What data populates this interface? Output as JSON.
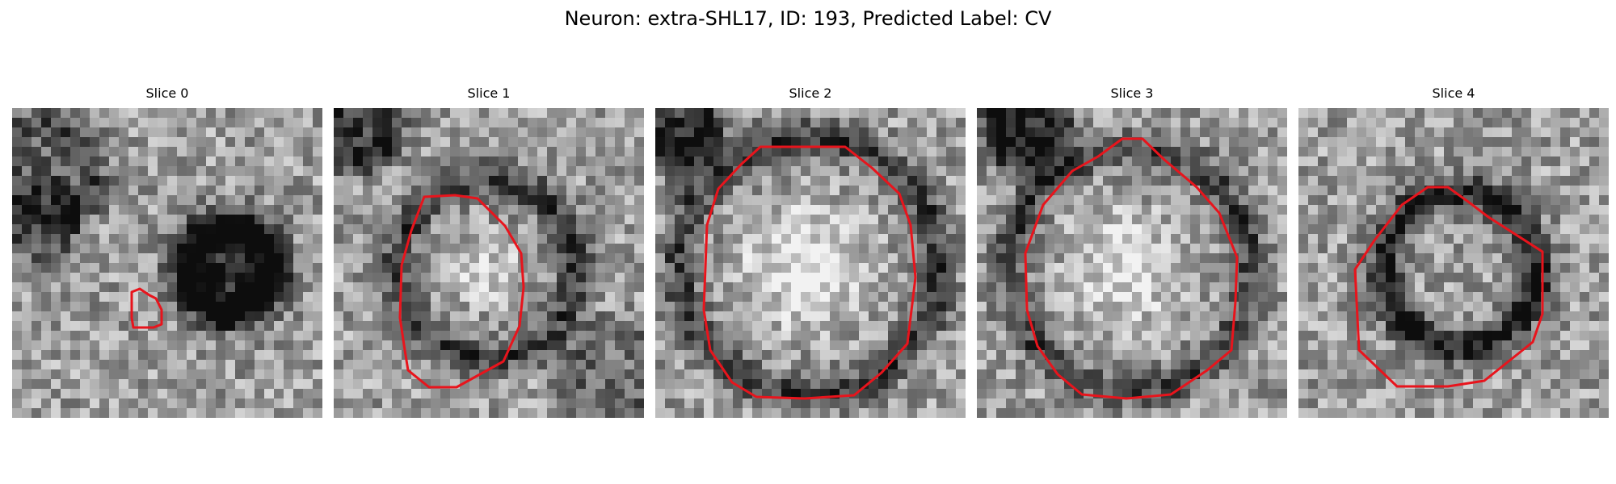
{
  "figure": {
    "title": "Neuron: extra-SHL17, ID: 193, Predicted Label: CV"
  },
  "colors": {
    "contour": "#e8141c",
    "background": "#ffffff"
  },
  "panels": [
    {
      "title": "Slice 0",
      "contour_shape": "small blob, lower-left of center"
    },
    {
      "title": "Slice 1",
      "contour_shape": "medium circle"
    },
    {
      "title": "Slice 2",
      "contour_shape": "large octagon"
    },
    {
      "title": "Slice 3",
      "contour_shape": "large octagon"
    },
    {
      "title": "Slice 4",
      "contour_shape": "medium octagon"
    }
  ]
}
